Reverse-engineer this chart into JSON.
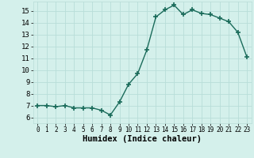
{
  "x": [
    0,
    1,
    2,
    3,
    4,
    5,
    6,
    7,
    8,
    9,
    10,
    11,
    12,
    13,
    14,
    15,
    16,
    17,
    18,
    19,
    20,
    21,
    22,
    23
  ],
  "y": [
    7.0,
    7.0,
    6.9,
    7.0,
    6.8,
    6.8,
    6.8,
    6.6,
    6.2,
    7.3,
    8.8,
    9.7,
    11.7,
    14.5,
    15.1,
    15.5,
    14.7,
    15.1,
    14.8,
    14.7,
    14.4,
    14.1,
    13.2,
    11.1
  ],
  "line_color": "#1a6b5a",
  "marker": "+",
  "marker_size": 4.0,
  "bg_color": "#d4f0eb",
  "grid_color": "#b8ddd8",
  "xlabel": "Humidex (Indice chaleur)",
  "ylim": [
    5.5,
    15.8
  ],
  "xlim": [
    -0.5,
    23.5
  ],
  "yticks": [
    6,
    7,
    8,
    9,
    10,
    11,
    12,
    13,
    14,
    15
  ],
  "xticks": [
    0,
    1,
    2,
    3,
    4,
    5,
    6,
    7,
    8,
    9,
    10,
    11,
    12,
    13,
    14,
    15,
    16,
    17,
    18,
    19,
    20,
    21,
    22,
    23
  ],
  "xlabel_fontsize": 7.5,
  "ytick_fontsize": 6.5,
  "xtick_fontsize": 5.5,
  "line_width": 1.0,
  "marker_color": "#1a6b5a"
}
